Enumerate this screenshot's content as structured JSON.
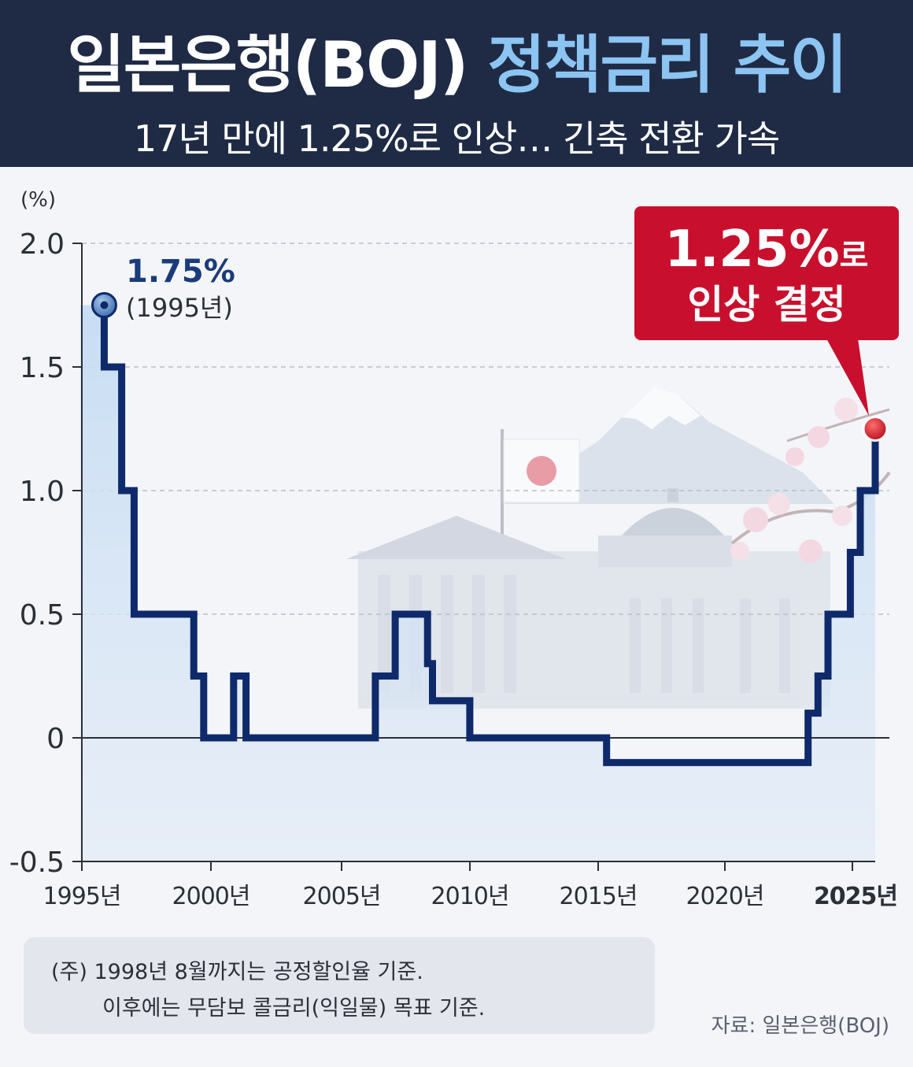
{
  "header": {
    "title_part1": "일본은행(BOJ)",
    "title_part2": "정책금리 추이",
    "subtitle": "17년 만에 1.25%로 인상… 긴축 전환 가속"
  },
  "chart_data": {
    "type": "line",
    "step": true,
    "ylabel": "(%)",
    "yticks": [
      "2.0",
      "1.5",
      "1.0",
      "0.5",
      "0",
      "-0.5"
    ],
    "ylim": [
      -0.5,
      2.0
    ],
    "xticks": [
      "1995년",
      "2000년",
      "2005년",
      "2010년",
      "2015년",
      "2020년",
      "2025년"
    ],
    "xlim": [
      1995,
      2026.2
    ],
    "grid": "horizontal dashed",
    "series": [
      {
        "x": [
          1995.9,
          1995.9,
          2000.7,
          2000.7,
          2007.1,
          2008.9,
          2008.9,
          2016.1,
          2024.2,
          2024.6,
          2025.0,
          2026.0
        ],
        "y": [
          1.75,
          1.75,
          0.25,
          0.25,
          0.5,
          0.3,
          0.3,
          -0.1,
          0.1,
          0.25,
          0.5,
          1.25
        ],
        "steps": [
          [
            1995.9,
            1.75
          ],
          [
            1995.9,
            1.5
          ],
          [
            1996.6,
            1.5
          ],
          [
            1996.6,
            1.0
          ],
          [
            1997.1,
            1.0
          ],
          [
            1997.1,
            0.5
          ],
          [
            1999.5,
            0.5
          ],
          [
            1999.5,
            0.25
          ],
          [
            1999.9,
            0.25
          ],
          [
            1999.9,
            0.0
          ],
          [
            2001.1,
            0.0
          ],
          [
            2001.1,
            0.25
          ],
          [
            2001.6,
            0.25
          ],
          [
            2001.6,
            0.0
          ],
          [
            2006.8,
            0.0
          ],
          [
            2006.8,
            0.25
          ],
          [
            2007.6,
            0.25
          ],
          [
            2007.6,
            0.5
          ],
          [
            2008.9,
            0.5
          ],
          [
            2008.9,
            0.3
          ],
          [
            2009.1,
            0.3
          ],
          [
            2009.1,
            0.15
          ],
          [
            2010.6,
            0.15
          ],
          [
            2010.6,
            0.0
          ],
          [
            2016.1,
            0.0
          ],
          [
            2016.1,
            -0.1
          ],
          [
            2024.2,
            -0.1
          ],
          [
            2024.2,
            0.1
          ],
          [
            2024.6,
            0.1
          ],
          [
            2024.6,
            0.25
          ],
          [
            2025.0,
            0.25
          ],
          [
            2025.0,
            0.5
          ],
          [
            2025.9,
            0.5
          ],
          [
            2025.9,
            0.75
          ],
          [
            2026.3,
            0.75
          ],
          [
            2026.3,
            1.0
          ],
          [
            2026.9,
            1.0
          ],
          [
            2026.9,
            1.25
          ]
        ]
      }
    ],
    "annotations": {
      "start_value": "1.75%",
      "start_year": "(1995년)",
      "end_value": "1.25%",
      "end_value_suffix": "로",
      "end_text": "인상 결정"
    }
  },
  "colors": {
    "header_bg": "#1f2b45",
    "accent_blue": "#8cc4f2",
    "line": "#0e2a6b",
    "callout_red": "#c8102e"
  },
  "note": {
    "line1": "(주)  1998년 8월까지는 공정할인율 기준.",
    "line2": "이후에는 무담보 콜금리(익일물) 목표 기준."
  },
  "source": "자료: 일본은행(BOJ)"
}
